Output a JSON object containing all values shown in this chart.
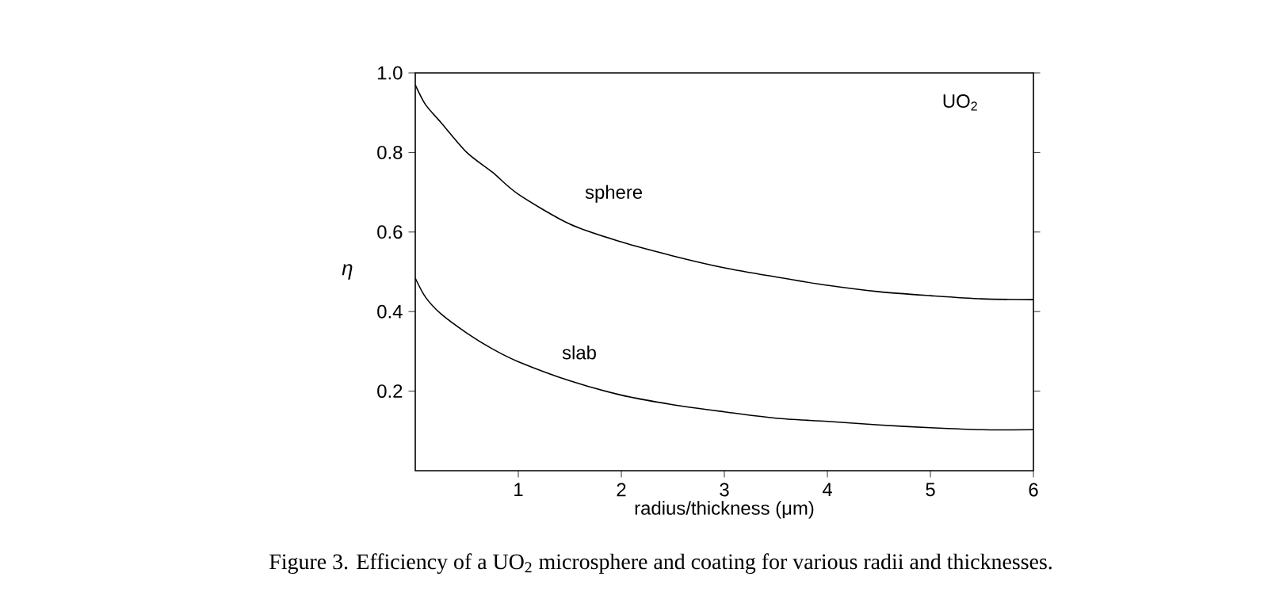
{
  "chart_data": {
    "type": "line",
    "xlabel": "radius/thickness (μm)",
    "ylabel": "η",
    "annotations": [
      "UO$_{2}$",
      "Figure 3. Efficiency of a UO$_{2}$ microsphere and coating for various radii and thicknesses."
    ],
    "xlim": [
      0,
      6
    ],
    "ylim": [
      0,
      1
    ],
    "xticks": [
      1,
      2,
      3,
      4,
      5,
      6
    ],
    "yticks": [
      0.2,
      0.4,
      0.6,
      0.8,
      {
        "value": 1,
        "label": "1.0"
      }
    ],
    "series": [
      {
        "name": "sphere",
        "color": "#000000",
        "x": [
          0,
          0.1,
          0.25,
          0.5,
          0.75,
          1,
          1.5,
          2,
          2.5,
          3,
          3.5,
          4,
          4.5,
          5,
          5.5,
          6
        ],
        "values": [
          0.97,
          0.92,
          0.875,
          0.8,
          0.75,
          0.695,
          0.62,
          0.575,
          0.54,
          0.51,
          0.487,
          0.466,
          0.45,
          0.44,
          0.432,
          0.43
        ]
      },
      {
        "name": "slab",
        "color": "#000000",
        "x": [
          0,
          0.1,
          0.25,
          0.5,
          0.75,
          1,
          1.5,
          2,
          2.5,
          3,
          3.5,
          4,
          4.5,
          5,
          5.5,
          6
        ],
        "values": [
          0.484,
          0.436,
          0.394,
          0.346,
          0.306,
          0.274,
          0.226,
          0.19,
          0.166,
          0.148,
          0.132,
          0.124,
          0.115,
          0.108,
          0.103,
          0.103
        ]
      }
    ]
  }
}
